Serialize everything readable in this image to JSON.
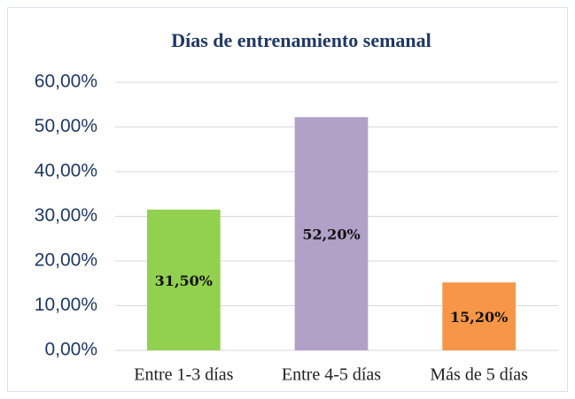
{
  "chart_data": {
    "type": "bar",
    "title": "Días de entrenamiento semanal",
    "categories": [
      "Entre 1-3 días",
      "Entre 4-5 días",
      "Más de 5 días"
    ],
    "values": [
      31.5,
      52.2,
      15.2
    ],
    "value_labels": [
      "31,50%",
      "52,20%",
      "15,20%"
    ],
    "colors": [
      "#92d050",
      "#b1a0c7",
      "#f79646"
    ],
    "ylim": [
      0,
      60
    ],
    "yticks": [
      {
        "value": 0,
        "label": "0,00%"
      },
      {
        "value": 10,
        "label": "10,00%"
      },
      {
        "value": 20,
        "label": "20,00%"
      },
      {
        "value": 30,
        "label": "30,00%"
      },
      {
        "value": 40,
        "label": "40,00%"
      },
      {
        "value": 50,
        "label": "50,00%"
      },
      {
        "value": 60,
        "label": "60,00%"
      }
    ],
    "grid": true
  }
}
